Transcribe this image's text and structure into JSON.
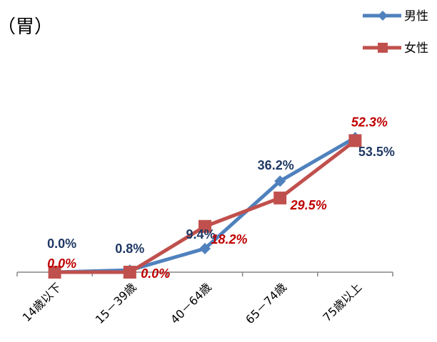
{
  "chart_data": {
    "type": "line",
    "title": "（胃）",
    "xlabel": "",
    "ylabel": "",
    "categories": [
      "14歳以下",
      "15－39歳",
      "40－64歳",
      "65－74歳",
      "75歳以上"
    ],
    "ylim": [
      0,
      60
    ],
    "grid": false,
    "legend": "top-right",
    "series": [
      {
        "name": "男性",
        "values": [
          0.0,
          0.8,
          9.4,
          36.2,
          53.5
        ],
        "labels": [
          "0.0%",
          "0.8%",
          "9.4%",
          "36.2%",
          "53.5%"
        ],
        "color": "#4F81BD",
        "label_color": "#1F3864",
        "marker": "diamond"
      },
      {
        "name": "女性",
        "values": [
          0.0,
          0.0,
          18.2,
          29.5,
          52.3
        ],
        "labels": [
          "0.0%",
          "0.0%",
          "18.2%",
          "29.5%",
          "52.3%"
        ],
        "color": "#C0504D",
        "label_color": "#C00000",
        "marker": "square"
      }
    ]
  }
}
